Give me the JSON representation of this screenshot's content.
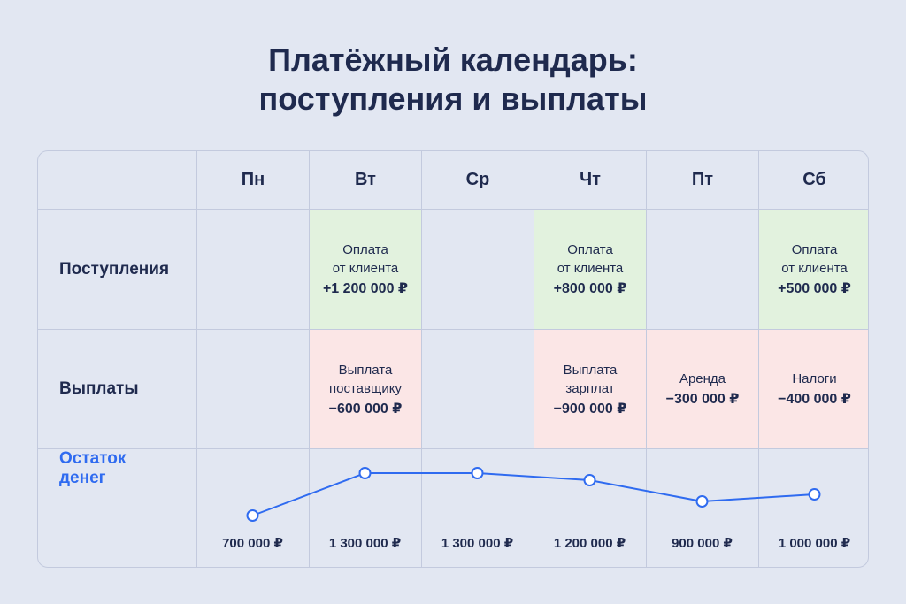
{
  "title": {
    "line1": "Платёжный календарь:",
    "line2": "поступления и выплаты"
  },
  "days": [
    "Пн",
    "Вт",
    "Ср",
    "Чт",
    "Пт",
    "Сб"
  ],
  "rows": {
    "income_label": "Поступления",
    "payments_label": "Выплаты",
    "balance_label_line1": "Остаток",
    "balance_label_line2": "денег"
  },
  "income": [
    null,
    {
      "line1": "Оплата",
      "line2": "от клиента",
      "amount": "+1 200 000 ₽"
    },
    null,
    {
      "line1": "Оплата",
      "line2": "от клиента",
      "amount": "+800 000 ₽"
    },
    null,
    {
      "line1": "Оплата",
      "line2": "от клиента",
      "amount": "+500 000 ₽"
    }
  ],
  "payments": [
    null,
    {
      "line1": "Выплата",
      "line2": "поставщику",
      "amount": "−600 000 ₽"
    },
    null,
    {
      "line1": "Выплата",
      "line2": "зарплат",
      "amount": "−900 000 ₽"
    },
    {
      "line1": "Аренда",
      "line2": "",
      "amount": "−300 000 ₽"
    },
    {
      "line1": "Налоги",
      "line2": "",
      "amount": "−400 000 ₽"
    }
  ],
  "chart_data": {
    "type": "line",
    "categories": [
      "Пн",
      "Вт",
      "Ср",
      "Чт",
      "Пт",
      "Сб"
    ],
    "values": [
      700000,
      1300000,
      1300000,
      1200000,
      900000,
      1000000
    ],
    "value_labels": [
      "700 000 ₽",
      "1 300 000 ₽",
      "1 300 000 ₽",
      "1 200 000 ₽",
      "900 000 ₽",
      "1 000 000 ₽"
    ],
    "title": "",
    "xlabel": "",
    "ylabel": ""
  },
  "colors": {
    "line": "#2f6bf0",
    "income_bg": "#e2f2de",
    "payment_bg": "#fbe6e6",
    "text": "#1f2a4e"
  }
}
